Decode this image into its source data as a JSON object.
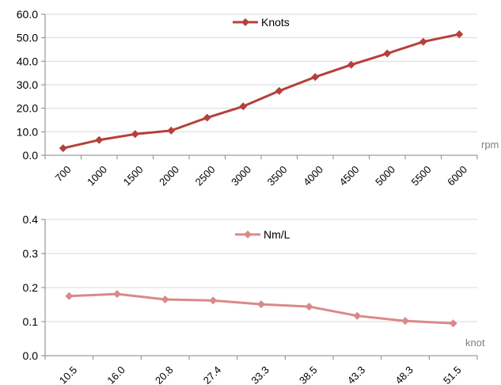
{
  "chart_data": [
    {
      "type": "line",
      "title": "",
      "xlabel": "rpm",
      "ylabel": "",
      "categories": [
        "700",
        "1000",
        "1500",
        "2000",
        "2500",
        "3000",
        "3500",
        "4000",
        "4500",
        "5000",
        "5500",
        "6000"
      ],
      "series": [
        {
          "name": "Knots",
          "values": [
            3.0,
            6.5,
            9.0,
            10.5,
            16.0,
            20.8,
            27.4,
            33.3,
            38.5,
            43.3,
            48.3,
            51.5
          ]
        }
      ],
      "ylim": [
        0,
        60
      ],
      "yticks": [
        "0.0",
        "10.0",
        "20.0",
        "30.0",
        "40.0",
        "50.0",
        "60.0"
      ],
      "grid": true,
      "legend": "top-center",
      "color": "#B5403C"
    },
    {
      "type": "line",
      "title": "",
      "xlabel": "knot",
      "ylabel": "",
      "categories": [
        "10.5",
        "16.0",
        "20.8",
        "27.4",
        "33.3",
        "38.5",
        "43.3",
        "48.3",
        "51.5"
      ],
      "series": [
        {
          "name": "Nm/L",
          "values": [
            0.175,
            0.181,
            0.165,
            0.162,
            0.151,
            0.144,
            0.117,
            0.102,
            0.095
          ]
        }
      ],
      "ylim": [
        0,
        0.4
      ],
      "yticks": [
        "0.0",
        "0.1",
        "0.2",
        "0.3",
        "0.4"
      ],
      "grid": true,
      "legend": "top-center",
      "color": "#D98A88"
    }
  ]
}
